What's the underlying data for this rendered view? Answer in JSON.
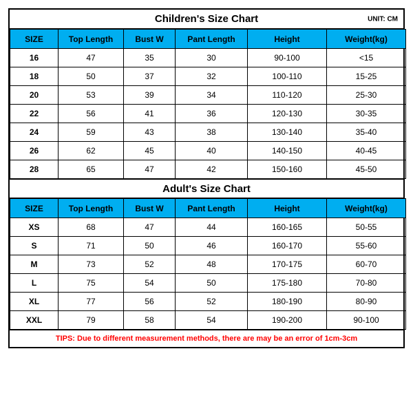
{
  "children_chart": {
    "title": "Children's Size Chart",
    "unit": "UNIT: CM",
    "header_bg": "#00aef0",
    "columns": [
      "SIZE",
      "Top Length",
      "Bust W",
      "Pant Length",
      "Height",
      "Weight(kg)"
    ],
    "rows": [
      [
        "16",
        "47",
        "35",
        "30",
        "90-100",
        "<15"
      ],
      [
        "18",
        "50",
        "37",
        "32",
        "100-110",
        "15-25"
      ],
      [
        "20",
        "53",
        "39",
        "34",
        "110-120",
        "25-30"
      ],
      [
        "22",
        "56",
        "41",
        "36",
        "120-130",
        "30-35"
      ],
      [
        "24",
        "59",
        "43",
        "38",
        "130-140",
        "35-40"
      ],
      [
        "26",
        "62",
        "45",
        "40",
        "140-150",
        "40-45"
      ],
      [
        "28",
        "65",
        "47",
        "42",
        "150-160",
        "45-50"
      ]
    ]
  },
  "adult_chart": {
    "title": "Adult's Size Chart",
    "header_bg": "#00aef0",
    "columns": [
      "SIZE",
      "Top Length",
      "Bust W",
      "Pant Length",
      "Height",
      "Weight(kg)"
    ],
    "rows": [
      [
        "XS",
        "68",
        "47",
        "44",
        "160-165",
        "50-55"
      ],
      [
        "S",
        "71",
        "50",
        "46",
        "160-170",
        "55-60"
      ],
      [
        "M",
        "73",
        "52",
        "48",
        "170-175",
        "60-70"
      ],
      [
        "L",
        "75",
        "54",
        "50",
        "175-180",
        "70-80"
      ],
      [
        "XL",
        "77",
        "56",
        "52",
        "180-190",
        "80-90"
      ],
      [
        "XXL",
        "79",
        "58",
        "54",
        "190-200",
        "90-100"
      ]
    ]
  },
  "tips": "TIPS: Due to different measurement methods, there are may be an error of 1cm-3cm"
}
